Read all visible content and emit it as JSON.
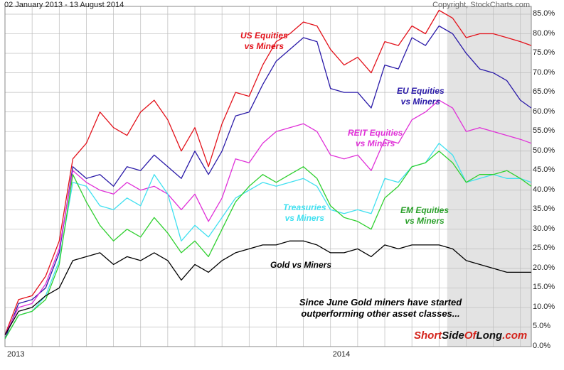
{
  "header": {
    "date_range": "02 January 2013 - 13 August 2014",
    "copyright": "Copyright, StockCharts.com"
  },
  "annotation": {
    "line1": "Since June Gold miners have started",
    "line2": "outperforming other asset classes..."
  },
  "brand": {
    "part1": "Short",
    "part2": "Side",
    "part3": "Of",
    "part4": "Long",
    "part5": ".com"
  },
  "colors": {
    "us": "#e3121b",
    "eu": "#2a1aa8",
    "reit": "#e030d8",
    "treasuries": "#40e0f0",
    "em": "#30d030",
    "gold": "#000000",
    "shade": "#e3e3e3",
    "grid": "#bcbcbc",
    "brand_red": "#d4241c"
  },
  "chart_data": {
    "type": "line",
    "title": "02 January 2013 - 13 August 2014",
    "ylim": [
      0,
      87
    ],
    "yticks": [
      "0.0%",
      "5.0%",
      "10.0%",
      "15.0%",
      "20.0%",
      "25.0%",
      "30.0%",
      "35.0%",
      "40.0%",
      "45.0%",
      "50.0%",
      "55.0%",
      "60.0%",
      "65.0%",
      "70.0%",
      "75.0%",
      "80.0%",
      "85.0%"
    ],
    "ytick_values": [
      0,
      5,
      10,
      15,
      20,
      25,
      30,
      35,
      40,
      45,
      50,
      55,
      60,
      65,
      70,
      75,
      80,
      85
    ],
    "xticks": [
      "2013",
      "2014"
    ],
    "xtick_values": [
      0,
      12
    ],
    "xlim": [
      0,
      19.4
    ],
    "shaded_region": [
      16.3,
      19.4
    ],
    "series": [
      {
        "key": "us",
        "name": "US Equities vs Miners",
        "label_line1": "US Equities",
        "label_line2": "vs Miners",
        "x": [
          0,
          0.5,
          1.0,
          1.5,
          2.0,
          2.5,
          3.0,
          3.5,
          4.0,
          4.5,
          5.0,
          5.5,
          6.0,
          6.5,
          7.0,
          7.5,
          8.0,
          8.5,
          9.0,
          9.5,
          10.0,
          10.5,
          11.0,
          11.5,
          12.0,
          12.5,
          13.0,
          13.5,
          14.0,
          14.5,
          15.0,
          15.5,
          16.0,
          16.5,
          17.0,
          17.5,
          18.0,
          18.5,
          19.0,
          19.4
        ],
        "values": [
          3,
          12,
          13,
          18,
          27,
          48,
          52,
          60,
          56,
          54,
          60,
          63,
          58,
          50,
          56,
          46,
          57,
          65,
          64,
          72,
          78,
          80,
          83,
          82,
          76,
          72,
          74,
          70,
          78,
          77,
          82,
          80,
          86,
          84,
          79,
          80,
          80,
          79,
          78,
          77
        ]
      },
      {
        "key": "eu",
        "name": "EU Equities vs Miners",
        "label_line1": "EU Equities",
        "label_line2": "vs Miners",
        "x": [
          0,
          0.5,
          1.0,
          1.5,
          2.0,
          2.5,
          3.0,
          3.5,
          4.0,
          4.5,
          5.0,
          5.5,
          6.0,
          6.5,
          7.0,
          7.5,
          8.0,
          8.5,
          9.0,
          9.5,
          10.0,
          10.5,
          11.0,
          11.5,
          12.0,
          12.5,
          13.0,
          13.5,
          14.0,
          14.5,
          15.0,
          15.5,
          16.0,
          16.5,
          17.0,
          17.5,
          18.0,
          18.5,
          19.0,
          19.4
        ],
        "values": [
          2,
          11,
          12,
          15,
          24,
          46,
          43,
          44,
          41,
          46,
          45,
          49,
          46,
          43,
          50,
          44,
          50,
          59,
          60,
          67,
          73,
          76,
          79,
          78,
          66,
          65,
          65,
          61,
          72,
          71,
          79,
          77,
          82,
          80,
          75,
          71,
          70,
          68,
          63,
          61
        ]
      },
      {
        "key": "reit",
        "name": "REIT Equities vs Miners",
        "label_line1": "REIT Equities",
        "label_line2": "vs Miners",
        "x": [
          0,
          0.5,
          1.0,
          1.5,
          2.0,
          2.5,
          3.0,
          3.5,
          4.0,
          4.5,
          5.0,
          5.5,
          6.0,
          6.5,
          7.0,
          7.5,
          8.0,
          8.5,
          9.0,
          9.5,
          10.0,
          10.5,
          11.0,
          11.5,
          12.0,
          12.5,
          13.0,
          13.5,
          14.0,
          14.5,
          15.0,
          15.5,
          16.0,
          16.5,
          17.0,
          17.5,
          18.0,
          18.5,
          19.0,
          19.4
        ],
        "values": [
          3,
          10,
          11,
          16,
          25,
          45,
          42,
          40,
          39,
          42,
          40,
          41,
          39,
          35,
          39,
          32,
          38,
          48,
          47,
          52,
          55,
          56,
          57,
          55,
          49,
          48,
          49,
          45,
          53,
          52,
          58,
          60,
          63,
          61,
          55,
          56,
          55,
          54,
          53,
          52
        ]
      },
      {
        "key": "treasuries",
        "name": "Treasuries vs Miners",
        "label_line1": "Treasuries",
        "label_line2": "vs Miners",
        "x": [
          0,
          0.5,
          1.0,
          1.5,
          2.0,
          2.5,
          3.0,
          3.5,
          4.0,
          4.5,
          5.0,
          5.5,
          6.0,
          6.5,
          7.0,
          7.5,
          8.0,
          8.5,
          9.0,
          9.5,
          10.0,
          10.5,
          11.0,
          11.5,
          12.0,
          12.5,
          13.0,
          13.5,
          14.0,
          14.5,
          15.0,
          15.5,
          16.0,
          16.5,
          17.0,
          17.5,
          18.0,
          18.5,
          19.0,
          19.4
        ],
        "values": [
          2,
          8,
          9,
          13,
          22,
          42,
          41,
          36,
          35,
          38,
          36,
          44,
          39,
          27,
          31,
          28,
          33,
          38,
          40,
          42,
          41,
          42,
          43,
          41,
          35,
          34,
          35,
          34,
          43,
          42,
          46,
          47,
          52,
          49,
          42,
          43,
          44,
          43,
          43,
          42
        ]
      },
      {
        "key": "em",
        "name": "EM Equities vs Miners",
        "label_line1": "EM Equities",
        "label_line2": "vs Miners",
        "x": [
          0,
          0.5,
          1.0,
          1.5,
          2.0,
          2.5,
          3.0,
          3.5,
          4.0,
          4.5,
          5.0,
          5.5,
          6.0,
          6.5,
          7.0,
          7.5,
          8.0,
          8.5,
          9.0,
          9.5,
          10.0,
          10.5,
          11.0,
          11.5,
          12.0,
          12.5,
          13.0,
          13.5,
          14.0,
          14.5,
          15.0,
          15.5,
          16.0,
          16.5,
          17.0,
          17.5,
          18.0,
          18.5,
          19.0,
          19.4
        ],
        "values": [
          2,
          8,
          9,
          12,
          21,
          44,
          37,
          31,
          27,
          30,
          28,
          33,
          29,
          24,
          27,
          23,
          30,
          37,
          41,
          44,
          42,
          44,
          46,
          43,
          36,
          33,
          32,
          30,
          38,
          41,
          46,
          47,
          50,
          47,
          42,
          44,
          44,
          45,
          43,
          41
        ]
      },
      {
        "key": "gold",
        "name": "Gold vs Miners",
        "label_line1": "Gold vs Miners",
        "label_line2": "",
        "x": [
          0,
          0.5,
          1.0,
          1.5,
          2.0,
          2.5,
          3.0,
          3.5,
          4.0,
          4.5,
          5.0,
          5.5,
          6.0,
          6.5,
          7.0,
          7.5,
          8.0,
          8.5,
          9.0,
          9.5,
          10.0,
          10.5,
          11.0,
          11.5,
          12.0,
          12.5,
          13.0,
          13.5,
          14.0,
          14.5,
          15.0,
          15.5,
          16.0,
          16.5,
          17.0,
          17.5,
          18.0,
          18.5,
          19.0,
          19.4
        ],
        "values": [
          3,
          9,
          10,
          13,
          15,
          22,
          23,
          24,
          21,
          23,
          22,
          24,
          22,
          17,
          21,
          19,
          22,
          24,
          25,
          26,
          26,
          27,
          27,
          26,
          24,
          24,
          25,
          23,
          26,
          25,
          26,
          26,
          26,
          25,
          22,
          21,
          20,
          19,
          19,
          19
        ]
      }
    ]
  }
}
